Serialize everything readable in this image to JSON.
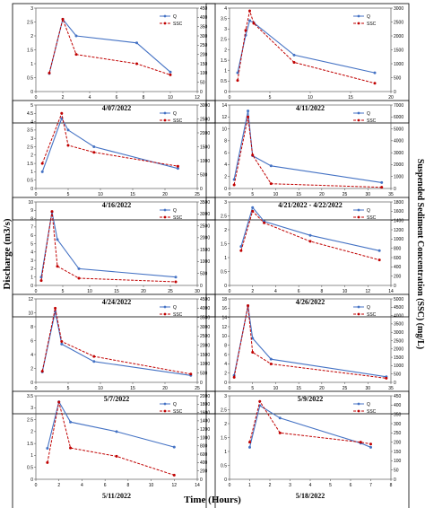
{
  "figure": {
    "xlabel": "Time (Hours)",
    "ylabel_left": "Discharge (m3/s)",
    "ylabel_right": "Suspended Sediment Concentration (SSC) (mg/L)",
    "colors": {
      "Q": "#4472c4",
      "SSC": "#c00000"
    }
  },
  "chart_data": [
    {
      "type": "line",
      "title": "4/07/2022",
      "xlim": [
        0,
        12
      ],
      "xticks": [
        0,
        2,
        4,
        6,
        8,
        10,
        12
      ],
      "ylim": [
        0,
        3
      ],
      "yticks": [
        0,
        0.5,
        1,
        1.5,
        2,
        2.5,
        3
      ],
      "y2lim": [
        0,
        450
      ],
      "y2ticks": [
        0,
        50,
        100,
        150,
        200,
        250,
        300,
        350,
        400,
        450
      ],
      "series": [
        {
          "name": "Q",
          "axis": "left",
          "x": [
            1,
            2,
            3,
            7.5,
            10
          ],
          "y": [
            0.65,
            2.6,
            2.0,
            1.75,
            0.7
          ]
        },
        {
          "name": "SSC",
          "axis": "right",
          "x": [
            1,
            2,
            3,
            7.5,
            10
          ],
          "y": [
            100,
            390,
            200,
            150,
            90
          ]
        }
      ]
    },
    {
      "type": "line",
      "title": "4/11/2022",
      "xlim": [
        0,
        20
      ],
      "xticks": [
        0,
        5,
        10,
        15,
        20
      ],
      "ylim": [
        0,
        4
      ],
      "yticks": [
        0,
        0.5,
        1,
        1.5,
        2,
        2.5,
        3,
        3.5,
        4
      ],
      "y2lim": [
        0,
        3000
      ],
      "y2ticks": [
        0,
        500,
        1000,
        1500,
        2000,
        2500,
        3000
      ],
      "series": [
        {
          "name": "Q",
          "axis": "left",
          "x": [
            1,
            2,
            2.5,
            3,
            8,
            18
          ],
          "y": [
            0.9,
            2.7,
            3.4,
            3.3,
            1.75,
            0.9
          ]
        },
        {
          "name": "SSC",
          "axis": "right",
          "x": [
            1,
            2,
            2.5,
            3,
            8,
            18
          ],
          "y": [
            400,
            2200,
            2900,
            2450,
            1050,
            300
          ]
        }
      ]
    },
    {
      "type": "line",
      "title": "4/16/2022",
      "xlim": [
        0,
        25
      ],
      "xticks": [
        0,
        5,
        10,
        15,
        20,
        25
      ],
      "ylim": [
        0,
        5
      ],
      "yticks": [
        0,
        0.5,
        1,
        1.5,
        2,
        2.5,
        3,
        3.5,
        4,
        4.5,
        5
      ],
      "y2lim": [
        0,
        3000
      ],
      "y2ticks": [
        0,
        500,
        1000,
        1500,
        2000,
        2500,
        3000
      ],
      "series": [
        {
          "name": "Q",
          "axis": "left",
          "x": [
            1,
            4,
            5,
            9,
            22
          ],
          "y": [
            1.0,
            4.2,
            3.5,
            2.5,
            1.2
          ]
        },
        {
          "name": "SSC",
          "axis": "right",
          "x": [
            1,
            4,
            5,
            9,
            22
          ],
          "y": [
            900,
            2700,
            1550,
            1300,
            800
          ]
        }
      ]
    },
    {
      "type": "line",
      "title": "4/21/2022 - 4/22/2022",
      "xlim": [
        0,
        35
      ],
      "xticks": [
        0,
        5,
        10,
        15,
        20,
        25,
        30,
        35
      ],
      "ylim": [
        0,
        14
      ],
      "yticks": [
        0,
        2,
        4,
        6,
        8,
        10,
        12,
        14
      ],
      "y2lim": [
        0,
        7000
      ],
      "y2ticks": [
        0,
        1000,
        2000,
        3000,
        4000,
        5000,
        6000,
        7000
      ],
      "series": [
        {
          "name": "Q",
          "axis": "left",
          "x": [
            1,
            4,
            5,
            9,
            33
          ],
          "y": [
            1.5,
            13.0,
            5.5,
            3.8,
            1.0
          ]
        },
        {
          "name": "SSC",
          "axis": "right",
          "x": [
            1,
            4,
            5,
            9,
            33
          ],
          "y": [
            300,
            6000,
            2800,
            400,
            100
          ]
        }
      ]
    },
    {
      "type": "line",
      "title": "4/24/2022",
      "xlim": [
        0,
        30
      ],
      "xticks": [
        0,
        5,
        10,
        15,
        20,
        25,
        30
      ],
      "ylim": [
        0,
        10
      ],
      "yticks": [
        0,
        1,
        2,
        3,
        4,
        5,
        6,
        7,
        8,
        9,
        10
      ],
      "y2lim": [
        0,
        3500
      ],
      "y2ticks": [
        0,
        500,
        1000,
        1500,
        2000,
        2500,
        3000,
        3500
      ],
      "series": [
        {
          "name": "Q",
          "axis": "left",
          "x": [
            1,
            3,
            4,
            8,
            26
          ],
          "y": [
            1.0,
            8.8,
            5.5,
            2.0,
            1.0
          ]
        },
        {
          "name": "SSC",
          "axis": "right",
          "x": [
            1,
            3,
            4,
            8,
            26
          ],
          "y": [
            200,
            3100,
            800,
            300,
            150
          ]
        }
      ]
    },
    {
      "type": "line",
      "title": "4/26/2022",
      "xlim": [
        0,
        14
      ],
      "xticks": [
        0,
        2,
        4,
        6,
        8,
        10,
        12,
        14
      ],
      "ylim": [
        0,
        3
      ],
      "yticks": [
        0,
        0.5,
        1,
        1.5,
        2,
        2.5,
        3
      ],
      "y2lim": [
        0,
        1800
      ],
      "y2ticks": [
        0,
        200,
        400,
        600,
        800,
        1000,
        1200,
        1400,
        1600,
        1800
      ],
      "series": [
        {
          "name": "Q",
          "axis": "left",
          "x": [
            1,
            2,
            3,
            7,
            13
          ],
          "y": [
            1.4,
            2.8,
            2.3,
            1.8,
            1.25
          ]
        },
        {
          "name": "SSC",
          "axis": "right",
          "x": [
            1,
            2,
            3,
            7,
            13
          ],
          "y": [
            750,
            1600,
            1350,
            950,
            550
          ]
        }
      ]
    },
    {
      "type": "line",
      "title": "5/7/2022",
      "xlim": [
        0,
        25
      ],
      "xticks": [
        0,
        5,
        10,
        15,
        20,
        25
      ],
      "ylim": [
        0,
        12
      ],
      "yticks": [
        0,
        2,
        4,
        6,
        8,
        10,
        12
      ],
      "y2lim": [
        0,
        4500
      ],
      "y2ticks": [
        0,
        500,
        1000,
        1500,
        2000,
        2500,
        3000,
        3500,
        4000,
        4500
      ],
      "series": [
        {
          "name": "Q",
          "axis": "left",
          "x": [
            1,
            3,
            4,
            9,
            24
          ],
          "y": [
            1.5,
            10.2,
            5.5,
            3.0,
            1.0
          ]
        },
        {
          "name": "SSC",
          "axis": "right",
          "x": [
            1,
            3,
            4,
            9,
            24
          ],
          "y": [
            600,
            4000,
            2200,
            1400,
            450
          ]
        }
      ]
    },
    {
      "type": "line",
      "title": "5/9/2022",
      "xlim": [
        0,
        35
      ],
      "xticks": [
        0,
        5,
        10,
        15,
        20,
        25,
        30,
        35
      ],
      "ylim": [
        0,
        18
      ],
      "yticks": [
        0,
        2,
        4,
        6,
        8,
        10,
        12,
        14,
        16,
        18
      ],
      "y2lim": [
        0,
        5000
      ],
      "y2ticks": [
        0,
        500,
        1000,
        1500,
        2000,
        2500,
        3000,
        3500,
        4000,
        4500,
        5000
      ],
      "series": [
        {
          "name": "Q",
          "axis": "left",
          "x": [
            1,
            4,
            5,
            9,
            34
          ],
          "y": [
            1.5,
            16.5,
            9.5,
            5.0,
            1.2
          ]
        },
        {
          "name": "SSC",
          "axis": "right",
          "x": [
            1,
            4,
            5,
            9,
            34
          ],
          "y": [
            300,
            4600,
            1800,
            1100,
            250
          ]
        }
      ]
    },
    {
      "type": "line",
      "title": "5/11/2022",
      "xlim": [
        0,
        14
      ],
      "xticks": [
        0,
        2,
        4,
        6,
        8,
        10,
        12,
        14
      ],
      "ylim": [
        0,
        3.5
      ],
      "yticks": [
        0,
        0.5,
        1,
        1.5,
        2,
        2.5,
        3,
        3.5
      ],
      "y2lim": [
        0,
        2000
      ],
      "y2ticks": [
        0,
        200,
        400,
        600,
        800,
        1000,
        1200,
        1400,
        1600,
        1800,
        2000
      ],
      "series": [
        {
          "name": "Q",
          "axis": "left",
          "x": [
            1,
            2,
            3,
            7,
            12
          ],
          "y": [
            1.3,
            3.25,
            2.4,
            2.0,
            1.35
          ]
        },
        {
          "name": "SSC",
          "axis": "right",
          "x": [
            1,
            2,
            3,
            7,
            12
          ],
          "y": [
            400,
            1850,
            750,
            550,
            100
          ]
        }
      ]
    },
    {
      "type": "line",
      "title": "5/18/2022",
      "xlim": [
        0,
        8
      ],
      "xticks": [
        0,
        1,
        2,
        3,
        4,
        5,
        6,
        7,
        8
      ],
      "ylim": [
        0,
        3
      ],
      "yticks": [
        0,
        0.5,
        1,
        1.5,
        2,
        2.5,
        3
      ],
      "y2lim": [
        0,
        450
      ],
      "y2ticks": [
        0,
        50,
        100,
        150,
        200,
        250,
        300,
        350,
        400,
        450
      ],
      "series": [
        {
          "name": "Q",
          "axis": "left",
          "x": [
            1,
            1.5,
            2.5,
            6.5,
            7
          ],
          "y": [
            1.15,
            2.65,
            2.2,
            1.3,
            1.15
          ]
        },
        {
          "name": "SSC",
          "axis": "right",
          "x": [
            1,
            1.5,
            2.5,
            6.5,
            7
          ],
          "y": [
            200,
            420,
            250,
            200,
            190
          ]
        }
      ]
    }
  ]
}
